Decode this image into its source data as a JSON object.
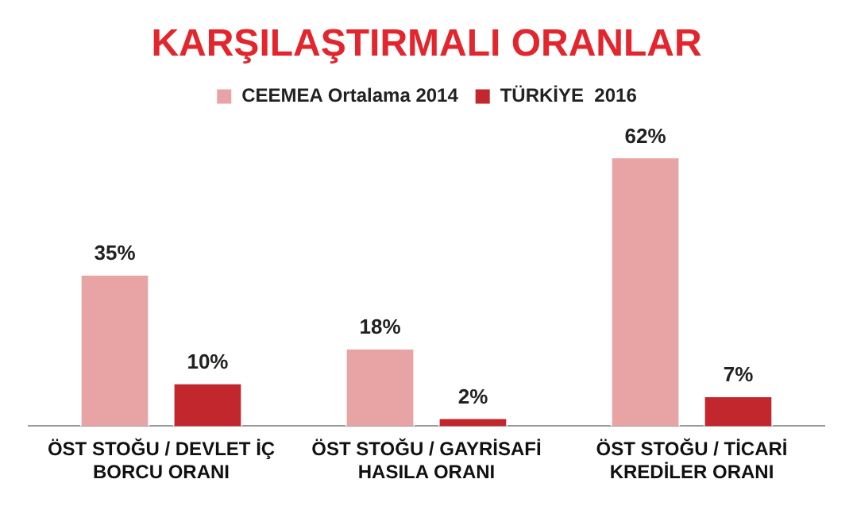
{
  "chart_data": {
    "type": "bar",
    "title": "KARŞILAŞTIRMALI ORANLAR",
    "categories": [
      "ÖST STOĞU / DEVLET İÇ BORCU ORANI",
      "ÖST STOĞU / GAYRİSAFİ HASILA ORANI",
      "ÖST STOĞU / TİCARİ KREDİLER ORANI"
    ],
    "series": [
      {
        "name": "CEEMEA Ortalama 2014",
        "color": "#e8a4a4",
        "values": [
          35,
          18,
          62
        ],
        "value_labels": [
          "35%",
          "18%",
          "62%"
        ]
      },
      {
        "name": "TÜRKİYE  2016",
        "color": "#c1272d",
        "values": [
          10,
          2,
          7
        ],
        "value_labels": [
          "10%",
          "2%",
          "7%"
        ]
      }
    ],
    "legend": "top",
    "grid": false
  }
}
